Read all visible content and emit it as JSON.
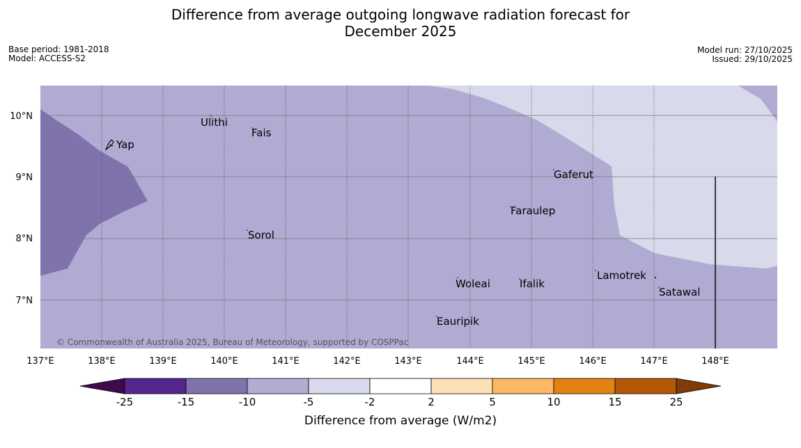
{
  "title": {
    "line1": "Difference from average outgoing longwave radiation forecast for",
    "line2": "December 2025"
  },
  "meta_left": {
    "base_period": "Base period: 1981-2018",
    "model": "Model: ACCESS-S2"
  },
  "meta_right": {
    "model_run": "Model run: 27/10/2025",
    "issued": "Issued: 29/10/2025"
  },
  "map": {
    "lon_labels": [
      "137°E",
      "138°E",
      "139°E",
      "140°E",
      "141°E",
      "142°E",
      "143°E",
      "144°E",
      "145°E",
      "146°E",
      "147°E",
      "148°E"
    ],
    "lat_labels": [
      "10°N",
      "9°N",
      "8°N",
      "7°N"
    ],
    "places": {
      "ulithi": "Ulithi",
      "fais": "Fais",
      "yap": "Yap",
      "gaferut": "Gaferut",
      "faraulep": "Faraulep",
      "sorol": "Sorol",
      "lamotrek": "Lamotrek",
      "satawal": "Satawal",
      "woleai": "Woleai",
      "ifalik": "Ifalik",
      "eauripik": "Eauripik"
    },
    "copyright": "© Commonwealth of Australia 2025, Bureau of Meteorology, supported by COSPPac"
  },
  "colorbar": {
    "ticks": [
      "-25",
      "-15",
      "-10",
      "-5",
      "-2",
      "2",
      "5",
      "10",
      "15",
      "25"
    ],
    "label": "Difference from average (W/m2)",
    "colors": {
      "under": "#3f0a4d",
      "c1": "#54278f",
      "c2": "#8073ac",
      "c3": "#b2abd2",
      "c4": "#d8daeb",
      "c5": "#ffffff",
      "c6": "#fee0b6",
      "c7": "#fdb863",
      "c8": "#e08214",
      "c9": "#b35806",
      "over": "#7f3b08"
    }
  },
  "field_colors": {
    "light_lavender": "#d8daeb",
    "mid_purple": "#b0abd2",
    "dark_purple": "#8073ac"
  }
}
